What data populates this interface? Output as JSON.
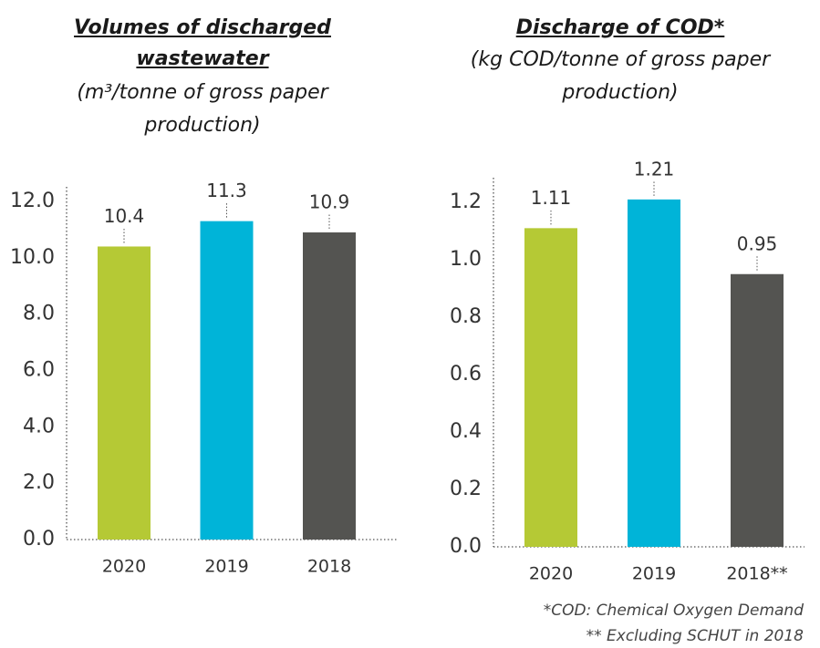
{
  "chart_data": [
    {
      "type": "bar",
      "title": "Volumes of discharged wastewater",
      "subtitle": "(m³/tonne of gross paper production)",
      "categories": [
        "2020",
        "2019",
        "2018"
      ],
      "values": [
        10.4,
        11.3,
        10.9
      ],
      "colors": [
        "#b5c935",
        "#00b4d8",
        "#545451"
      ],
      "ylim": [
        0,
        12
      ],
      "yticks": [
        {
          "value": 0,
          "label": "0.0"
        },
        {
          "value": 2,
          "label": "2.0"
        },
        {
          "value": 4,
          "label": "4.0"
        },
        {
          "value": 6,
          "label": "6.0"
        },
        {
          "value": 8,
          "label": "8.0"
        },
        {
          "value": 10,
          "label": "10.0"
        },
        {
          "value": 12,
          "label": "12.0"
        }
      ]
    },
    {
      "type": "bar",
      "title": "Discharge of COD*",
      "subtitle": "(kg COD/tonne of gross paper production)",
      "categories": [
        "2020",
        "2019",
        "2018**"
      ],
      "values": [
        1.11,
        1.21,
        0.95
      ],
      "colors": [
        "#b5c935",
        "#00b4d8",
        "#545451"
      ],
      "ylim": [
        0,
        1.2
      ],
      "yticks": [
        {
          "value": 0,
          "label": "0.0"
        },
        {
          "value": 0.2,
          "label": "0.2"
        },
        {
          "value": 0.4,
          "label": "0.4"
        },
        {
          "value": 0.6,
          "label": "0.6"
        },
        {
          "value": 0.8,
          "label": "0.8"
        },
        {
          "value": 1.0,
          "label": "1.0"
        },
        {
          "value": 1.2,
          "label": "1.2"
        }
      ],
      "notes": [
        "*COD: Chemical Oxygen Demand",
        "** Excluding SCHUT in 2018"
      ]
    }
  ]
}
